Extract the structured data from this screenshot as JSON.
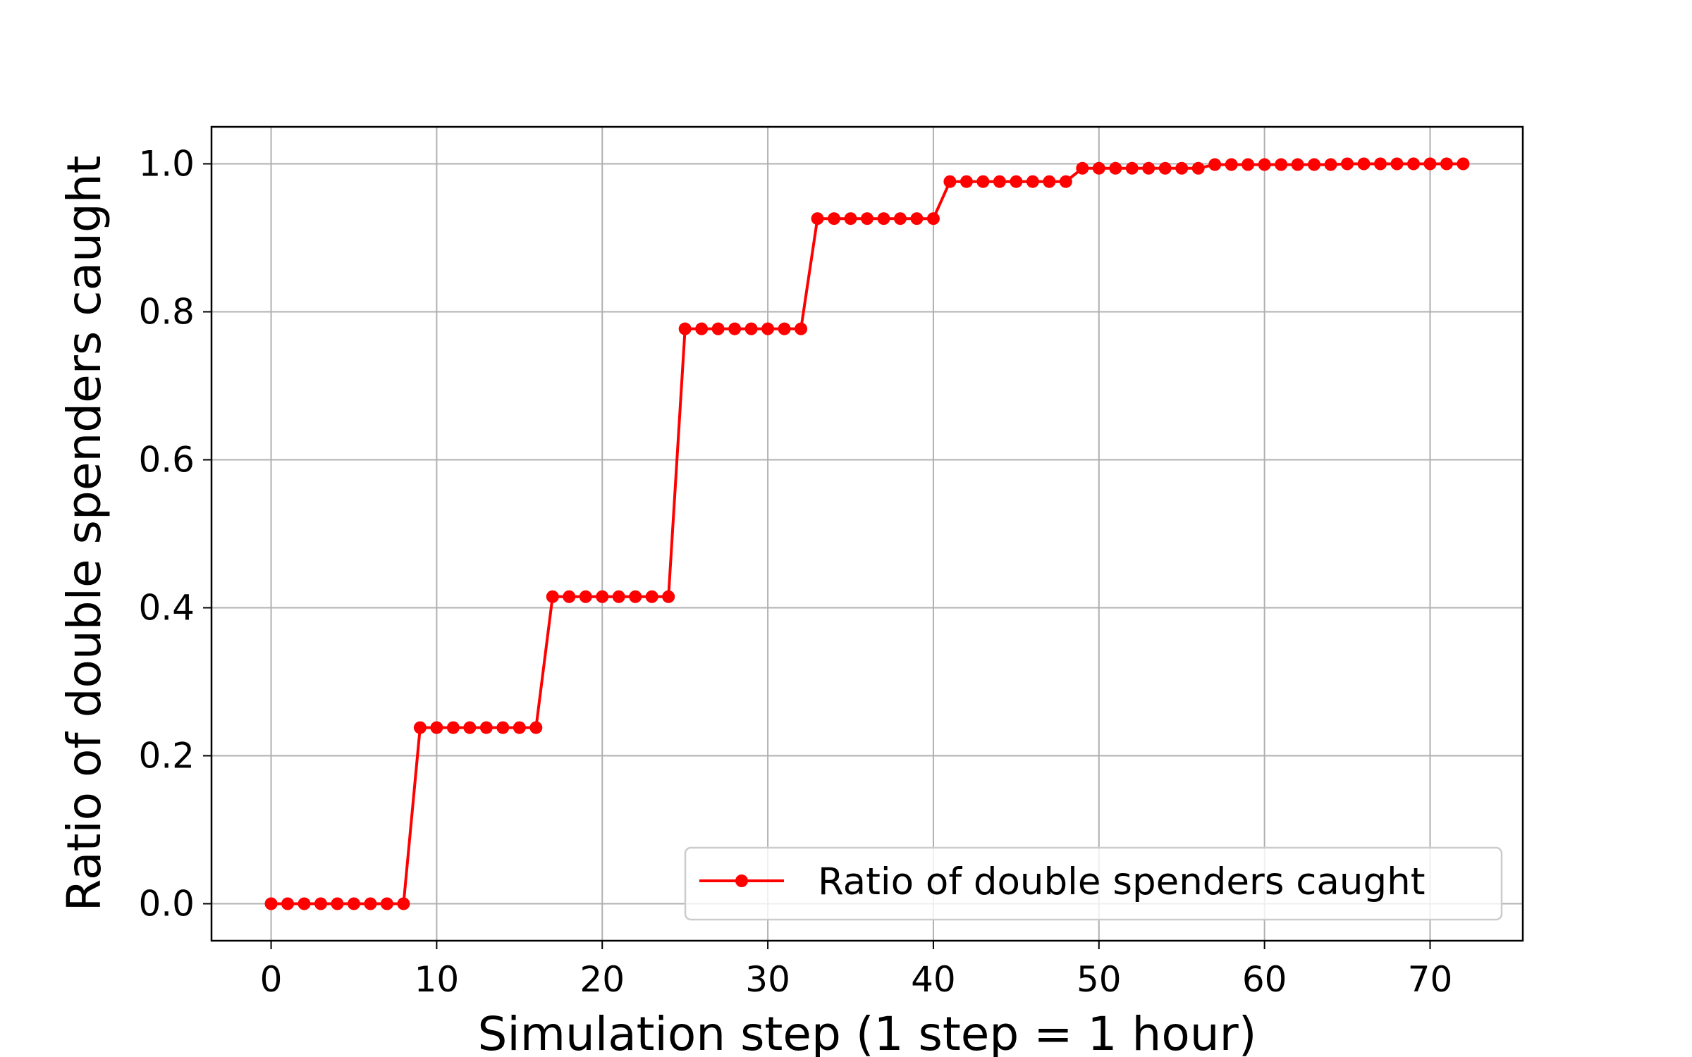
{
  "chart_data": {
    "type": "line",
    "title": "",
    "xlabel": "Simulation step (1 step = 1 hour)",
    "ylabel": "Ratio of double spenders caught",
    "xlim": [
      -3.6,
      75.6
    ],
    "ylim": [
      -0.05,
      1.05
    ],
    "x_ticks": [
      "0",
      "10",
      "20",
      "30",
      "40",
      "50",
      "60",
      "70"
    ],
    "y_ticks": [
      "0.0",
      "0.2",
      "0.4",
      "0.6",
      "0.8",
      "1.0"
    ],
    "grid": true,
    "legend_position": "lower-right",
    "series": [
      {
        "name": "Ratio of double spenders caught",
        "color": "#ff0000",
        "marker": "circle",
        "x": [
          0,
          1,
          2,
          3,
          4,
          5,
          6,
          7,
          8,
          9,
          10,
          11,
          12,
          13,
          14,
          15,
          16,
          17,
          18,
          19,
          20,
          21,
          22,
          23,
          24,
          25,
          26,
          27,
          28,
          29,
          30,
          31,
          32,
          33,
          34,
          35,
          36,
          37,
          38,
          39,
          40,
          41,
          42,
          43,
          44,
          45,
          46,
          47,
          48,
          49,
          50,
          51,
          52,
          53,
          54,
          55,
          56,
          57,
          58,
          59,
          60,
          61,
          62,
          63,
          64,
          65,
          66,
          67,
          68,
          69,
          70,
          71,
          72
        ],
        "y": [
          0,
          0,
          0,
          0,
          0,
          0,
          0,
          0,
          0,
          0.238,
          0.238,
          0.238,
          0.238,
          0.238,
          0.238,
          0.238,
          0.238,
          0.415,
          0.415,
          0.415,
          0.415,
          0.415,
          0.415,
          0.415,
          0.415,
          0.777,
          0.777,
          0.777,
          0.777,
          0.777,
          0.777,
          0.777,
          0.777,
          0.926,
          0.926,
          0.926,
          0.926,
          0.926,
          0.926,
          0.926,
          0.926,
          0.976,
          0.976,
          0.976,
          0.976,
          0.976,
          0.976,
          0.976,
          0.976,
          0.994,
          0.994,
          0.994,
          0.994,
          0.994,
          0.994,
          0.994,
          0.994,
          0.999,
          0.999,
          0.999,
          0.999,
          0.999,
          0.999,
          0.999,
          0.999,
          1.0,
          1.0,
          1.0,
          1.0,
          1.0,
          1.0,
          1.0,
          1.0
        ]
      }
    ]
  }
}
